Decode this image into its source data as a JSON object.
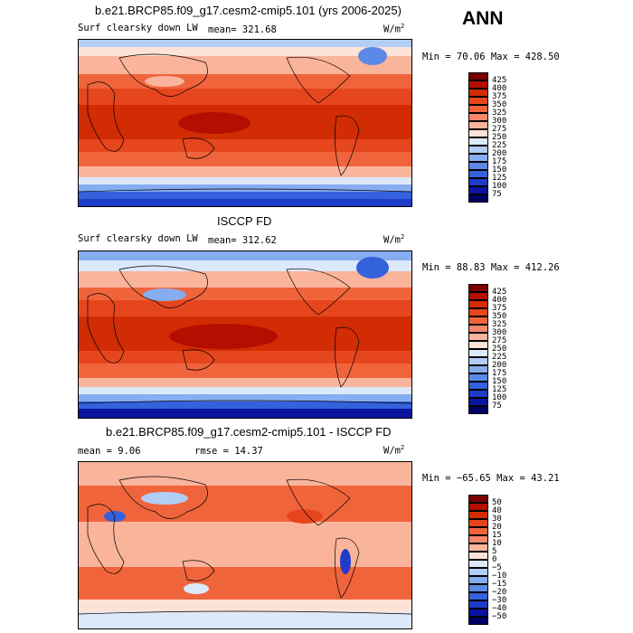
{
  "season": "ANN",
  "panels": [
    {
      "title": "b.e21.BRCP85.f09_g17.cesm2-cmip5.101 (yrs 2006-2025)",
      "variable": "Surf clearsky down LW",
      "mean_label": "mean= 321.68",
      "units": "W/m",
      "units_exp": "2",
      "minmax": "Min =  70.06 Max = 428.50",
      "colorbar_labels": [
        "425",
        "400",
        "375",
        "350",
        "325",
        "300",
        "275",
        "250",
        "225",
        "200",
        "175",
        "150",
        "125",
        "100",
        "75"
      ],
      "colors": [
        "#7a0000",
        "#b40e00",
        "#d22c05",
        "#e6461e",
        "#f0643c",
        "#f6876a",
        "#fab49c",
        "#fde2d6",
        "#dbe9fa",
        "#b1cef5",
        "#86adf0",
        "#5d89e6",
        "#3462dc",
        "#1e3cc8",
        "#0a14a0",
        "#000064"
      ]
    },
    {
      "title": "ISCCP FD",
      "variable": "Surf clearsky down LW",
      "mean_label": "mean= 312.62",
      "units": "W/m",
      "units_exp": "2",
      "minmax": "Min =  88.83 Max = 412.26",
      "colorbar_labels": [
        "425",
        "400",
        "375",
        "350",
        "325",
        "300",
        "275",
        "250",
        "225",
        "200",
        "175",
        "150",
        "125",
        "100",
        "75"
      ],
      "colors": [
        "#7a0000",
        "#b40e00",
        "#d22c05",
        "#e6461e",
        "#f0643c",
        "#f6876a",
        "#fab49c",
        "#fde2d6",
        "#dbe9fa",
        "#b1cef5",
        "#86adf0",
        "#5d89e6",
        "#3462dc",
        "#1e3cc8",
        "#0a14a0",
        "#000064"
      ]
    },
    {
      "title": "b.e21.BRCP85.f09_g17.cesm2-cmip5.101 - ISCCP FD",
      "mean_label": "mean =    9.06",
      "rmse_label": "rmse =   14.37",
      "units": "W/m",
      "units_exp": "2",
      "minmax": "Min = −65.65 Max =  43.21",
      "colorbar_labels": [
        "50",
        "40",
        "30",
        "20",
        "15",
        "10",
        "5",
        "0",
        "−5",
        "−10",
        "−15",
        "−20",
        "−30",
        "−40",
        "−50"
      ],
      "colors": [
        "#7a0000",
        "#b40e00",
        "#d22c05",
        "#e6461e",
        "#f0643c",
        "#f6876a",
        "#fab49c",
        "#fde2d6",
        "#dbe9fa",
        "#b1cef5",
        "#86adf0",
        "#5d89e6",
        "#3462dc",
        "#1e3cc8",
        "#0a14a0",
        "#000064"
      ]
    }
  ]
}
